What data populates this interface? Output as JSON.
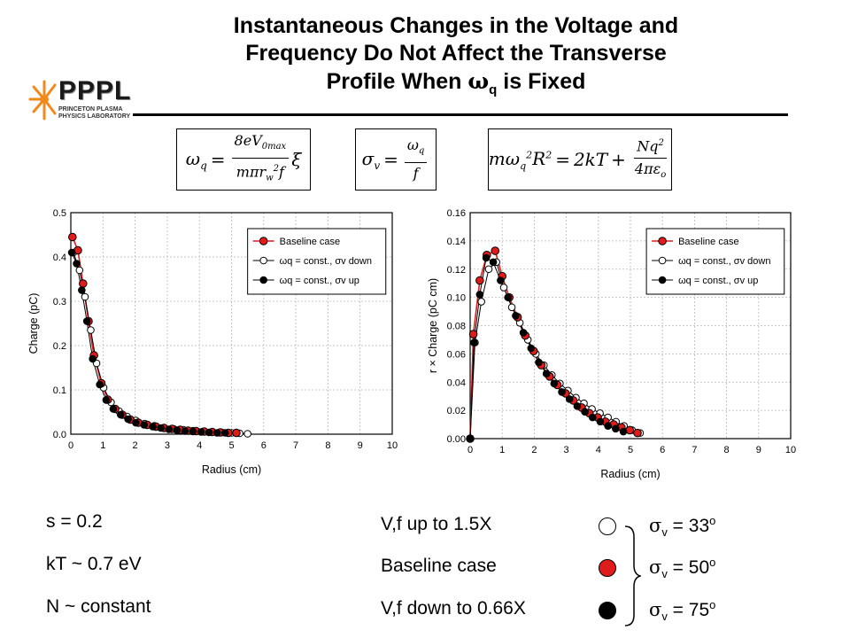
{
  "title": {
    "line1": "Instantaneous Changes in the Voltage and",
    "line2": "Frequency Do Not Affect the Transverse",
    "line3": "Profile When ωq is Fixed"
  },
  "logo": {
    "text": "PPPL",
    "sub1": "PRINCETON PLASMA",
    "sub2": "PHYSICS LABORATORY"
  },
  "equations": {
    "eq1": "ωq = 8eV0max / (m π rw² f) ξ",
    "eq2": "σv = ωq / f",
    "eq3": "m ωq² R² = 2kT + Nq² / (4π εo)"
  },
  "chart_data": [
    {
      "type": "scatter",
      "xlabel": "Radius (cm)",
      "ylabel": "Charge (pC)",
      "xlim": [
        0,
        10
      ],
      "ylim": [
        0,
        0.5
      ],
      "xticks": [
        "0",
        "1",
        "2",
        "3",
        "4",
        "5",
        "6",
        "7",
        "8",
        "9",
        "10"
      ],
      "yticks": [
        "0.0",
        "0.1",
        "0.2",
        "0.3",
        "0.4",
        "0.5"
      ],
      "grid": true,
      "legend": "top-right",
      "series": [
        {
          "name": "Baseline case",
          "marker": "red-filled",
          "color": "#e01b1b",
          "x": [
            0.05,
            0.22,
            0.38,
            0.55,
            0.72,
            0.95,
            1.15,
            1.38,
            1.6,
            1.85,
            2.1,
            2.38,
            2.65,
            2.9,
            3.15,
            3.4,
            3.65,
            3.9,
            4.15,
            4.4,
            4.65,
            4.9,
            5.15
          ],
          "y": [
            0.445,
            0.415,
            0.34,
            0.255,
            0.178,
            0.115,
            0.078,
            0.057,
            0.044,
            0.033,
            0.026,
            0.021,
            0.017,
            0.014,
            0.012,
            0.01,
            0.008,
            0.007,
            0.006,
            0.005,
            0.004,
            0.003,
            0.003
          ]
        },
        {
          "name": "ωq = const., σv down",
          "marker": "open",
          "color": "#000000",
          "x": [
            0.08,
            0.27,
            0.44,
            0.62,
            0.8,
            1.02,
            1.25,
            1.5,
            1.75,
            2.02,
            2.3,
            2.6,
            2.9,
            3.2,
            3.5,
            3.8,
            4.1,
            4.4,
            4.7,
            5.0,
            5.25,
            5.5
          ],
          "y": [
            0.41,
            0.37,
            0.31,
            0.235,
            0.16,
            0.105,
            0.072,
            0.052,
            0.04,
            0.031,
            0.024,
            0.019,
            0.015,
            0.012,
            0.01,
            0.008,
            0.006,
            0.005,
            0.004,
            0.003,
            0.002,
            0.001
          ]
        },
        {
          "name": "ωq = const., σv up",
          "marker": "black-filled",
          "color": "#000000",
          "x": [
            0.03,
            0.18,
            0.34,
            0.5,
            0.68,
            0.9,
            1.1,
            1.32,
            1.55,
            1.78,
            2.02,
            2.28,
            2.55,
            2.8,
            3.05,
            3.3,
            3.55,
            3.8,
            4.05,
            4.3,
            4.55,
            4.8
          ],
          "y": [
            0.41,
            0.385,
            0.325,
            0.255,
            0.17,
            0.112,
            0.077,
            0.057,
            0.044,
            0.034,
            0.026,
            0.021,
            0.017,
            0.014,
            0.011,
            0.009,
            0.007,
            0.006,
            0.005,
            0.004,
            0.003,
            0.003
          ]
        }
      ]
    },
    {
      "type": "scatter",
      "xlabel": "Radius (cm)",
      "ylabel": "r × Charge (pC cm)",
      "xlim": [
        0,
        10
      ],
      "ylim": [
        0,
        0.16
      ],
      "xticks": [
        "0",
        "1",
        "2",
        "3",
        "4",
        "5",
        "6",
        "7",
        "8",
        "9",
        "10"
      ],
      "yticks": [
        "0.00",
        "0.02",
        "0.04",
        "0.06",
        "0.08",
        "0.10",
        "0.12",
        "0.14",
        "0.16"
      ],
      "grid": true,
      "legend": "top-right",
      "series": [
        {
          "name": "Baseline case",
          "marker": "red-filled",
          "color": "#e01b1b",
          "x": [
            0.0,
            0.1,
            0.3,
            0.52,
            0.78,
            1.0,
            1.22,
            1.48,
            1.72,
            1.98,
            2.22,
            2.48,
            2.72,
            2.98,
            3.22,
            3.48,
            3.72,
            3.98,
            4.22,
            4.48,
            4.72,
            4.98,
            5.22
          ],
          "y": [
            0.0,
            0.074,
            0.112,
            0.13,
            0.133,
            0.115,
            0.1,
            0.086,
            0.073,
            0.062,
            0.052,
            0.044,
            0.038,
            0.032,
            0.027,
            0.022,
            0.018,
            0.015,
            0.012,
            0.01,
            0.008,
            0.006,
            0.004
          ]
        },
        {
          "name": "ωq = const., σv down",
          "marker": "open",
          "color": "#000000",
          "x": [
            0.0,
            0.15,
            0.35,
            0.58,
            0.82,
            1.05,
            1.3,
            1.55,
            1.8,
            2.05,
            2.3,
            2.55,
            2.8,
            3.05,
            3.3,
            3.55,
            3.8,
            4.05,
            4.3,
            4.55,
            4.8,
            5.05,
            5.3
          ],
          "y": [
            0.0,
            0.068,
            0.097,
            0.12,
            0.125,
            0.107,
            0.093,
            0.082,
            0.07,
            0.06,
            0.052,
            0.045,
            0.039,
            0.034,
            0.029,
            0.025,
            0.021,
            0.018,
            0.015,
            0.012,
            0.009,
            0.006,
            0.004
          ]
        },
        {
          "name": "ωq = const., σv up",
          "marker": "black-filled",
          "color": "#000000",
          "x": [
            0.0,
            0.12,
            0.3,
            0.5,
            0.72,
            0.95,
            1.18,
            1.42,
            1.66,
            1.9,
            2.14,
            2.38,
            2.62,
            2.86,
            3.1,
            3.34,
            3.58,
            3.82,
            4.06,
            4.3,
            4.54,
            4.78
          ],
          "y": [
            0.0,
            0.068,
            0.102,
            0.128,
            0.125,
            0.112,
            0.1,
            0.087,
            0.075,
            0.064,
            0.054,
            0.046,
            0.039,
            0.033,
            0.028,
            0.023,
            0.019,
            0.015,
            0.012,
            0.009,
            0.007,
            0.005
          ]
        }
      ]
    }
  ],
  "params": {
    "s": "s = 0.2",
    "kt": "kT ~ 0.7 eV",
    "n": "N ~ constant"
  },
  "cases": {
    "up": "V,f up to 1.5X",
    "base": "Baseline case",
    "down": "V,f down to 0.66X"
  },
  "sigmas": {
    "s1": "33",
    "s2": "50",
    "s3": "75"
  },
  "colors": {
    "baseline": "#e01b1b",
    "logo_orange": "#f08a1c"
  }
}
